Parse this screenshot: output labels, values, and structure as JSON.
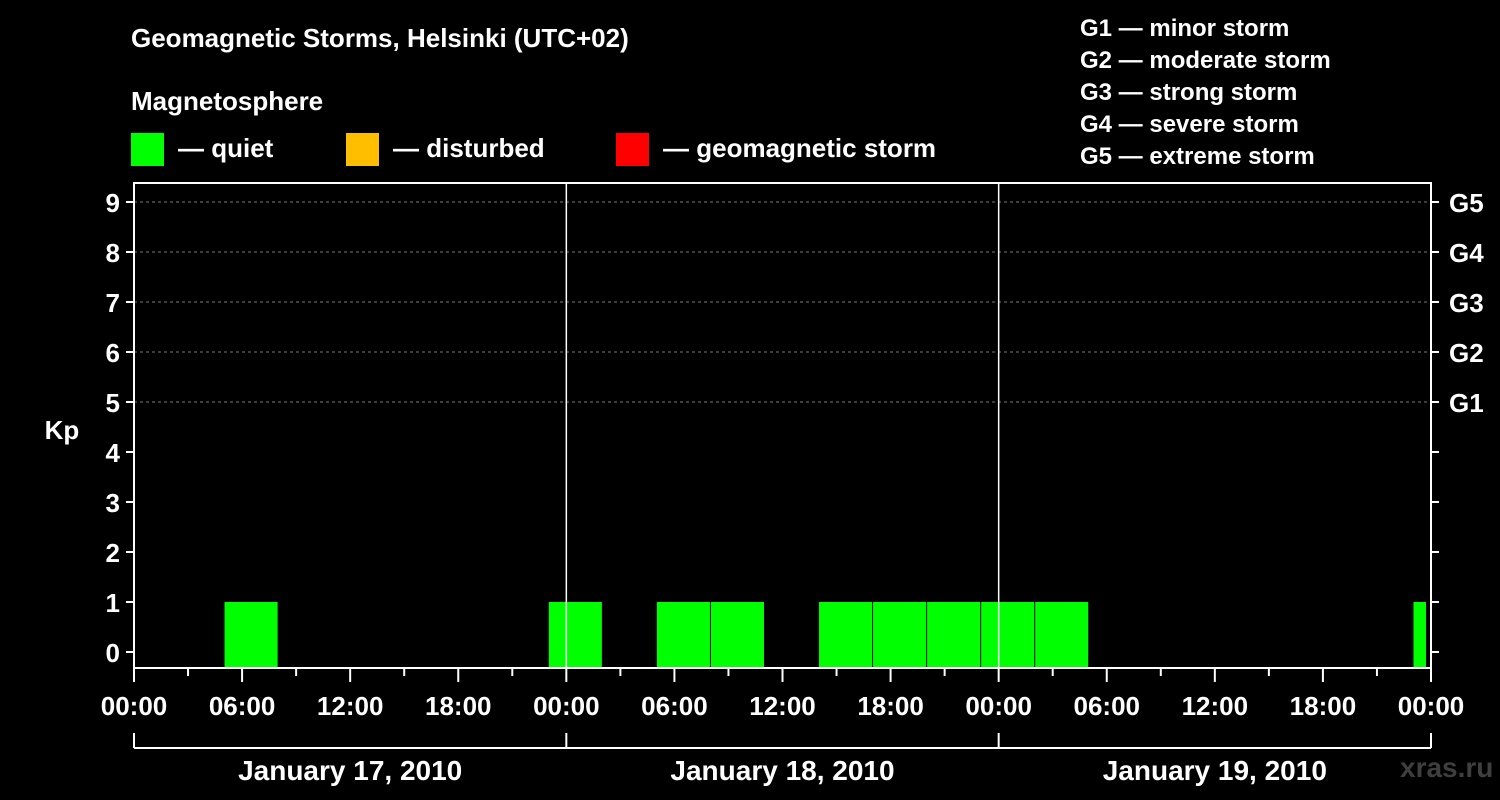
{
  "header": {
    "title": "Geomagnetic Storms, Helsinki (UTC+02)",
    "subtitle": "Magnetosphere"
  },
  "legend": [
    {
      "label": "— quiet",
      "color": "#00ff00"
    },
    {
      "label": "— disturbed",
      "color": "#ffbf00"
    },
    {
      "label": "— geomagnetic storm",
      "color": "#ff0000"
    }
  ],
  "storm_scale": [
    "G1 — minor storm",
    "G2 — moderate storm",
    "G3 — strong storm",
    "G4 — severe storm",
    "G5 — extreme storm"
  ],
  "watermark": "xras.ru",
  "chart_data": {
    "type": "bar",
    "ylabel": "Kp",
    "ylim": [
      0,
      9
    ],
    "yticks": [
      "0",
      "1",
      "2",
      "3",
      "4",
      "5",
      "6",
      "7",
      "8",
      "9"
    ],
    "right_axis_labels": [
      {
        "kp": 5,
        "label": "G1"
      },
      {
        "kp": 6,
        "label": "G2"
      },
      {
        "kp": 7,
        "label": "G3"
      },
      {
        "kp": 8,
        "label": "G4"
      },
      {
        "kp": 9,
        "label": "G5"
      }
    ],
    "xtick_labels": [
      "00:00",
      "06:00",
      "12:00",
      "18:00",
      "00:00",
      "06:00",
      "12:00",
      "18:00",
      "00:00",
      "06:00",
      "12:00",
      "18:00",
      "00:00"
    ],
    "days": [
      "January 17, 2010",
      "January 18, 2010",
      "January 19, 2010"
    ],
    "grid": true,
    "series": [
      {
        "values": [
          {
            "start": "January 17, 2010 05:00",
            "end": "January 17, 2010 08:00",
            "kp": 1,
            "level": "quiet"
          },
          {
            "start": "January 17, 2010 23:00",
            "end": "January 18, 2010 02:00",
            "kp": 1,
            "level": "quiet"
          },
          {
            "start": "January 18, 2010 05:00",
            "end": "January 18, 2010 08:00",
            "kp": 1,
            "level": "quiet"
          },
          {
            "start": "January 18, 2010 08:00",
            "end": "January 18, 2010 11:00",
            "kp": 1,
            "level": "quiet"
          },
          {
            "start": "January 18, 2010 14:00",
            "end": "January 18, 2010 17:00",
            "kp": 1,
            "level": "quiet"
          },
          {
            "start": "January 18, 2010 17:00",
            "end": "January 18, 2010 20:00",
            "kp": 1,
            "level": "quiet"
          },
          {
            "start": "January 18, 2010 20:00",
            "end": "January 18, 2010 23:00",
            "kp": 1,
            "level": "quiet"
          },
          {
            "start": "January 18, 2010 23:00",
            "end": "January 19, 2010 02:00",
            "kp": 1,
            "level": "quiet"
          },
          {
            "start": "January 19, 2010 02:00",
            "end": "January 19, 2010 05:00",
            "kp": 1,
            "level": "quiet"
          },
          {
            "start": "January 19, 2010 23:00",
            "end": "January 19, 2010 23:45",
            "kp": 1,
            "level": "quiet"
          }
        ]
      }
    ]
  }
}
